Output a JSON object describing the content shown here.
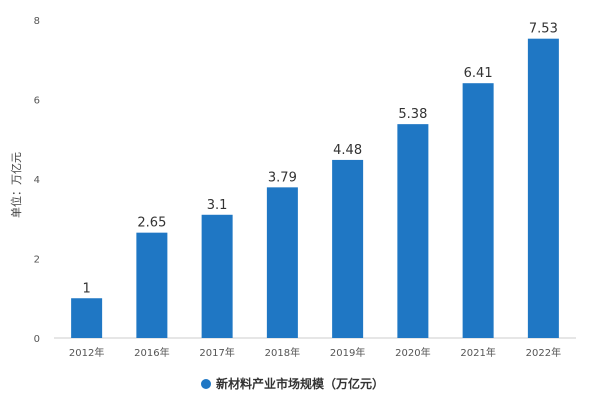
{
  "chart_data": {
    "type": "bar",
    "categories": [
      "2012年",
      "2016年",
      "2017年",
      "2018年",
      "2019年",
      "2020年",
      "2021年",
      "2022年"
    ],
    "series": [
      {
        "name": "新材料产业市场规模（万亿元）",
        "values": [
          1,
          2.65,
          3.1,
          3.79,
          4.48,
          5.38,
          6.41,
          7.53
        ],
        "labels": [
          "1",
          "2.65",
          "3.1",
          "3.79",
          "4.48",
          "5.38",
          "6.41",
          "7.53"
        ],
        "color": "#1f77c4"
      }
    ],
    "ylabel": "单位：万亿元",
    "ylim": [
      0,
      8
    ],
    "yticks": [
      0,
      2,
      4,
      6,
      8
    ],
    "grid": false,
    "legend_position": "bottom-center"
  }
}
